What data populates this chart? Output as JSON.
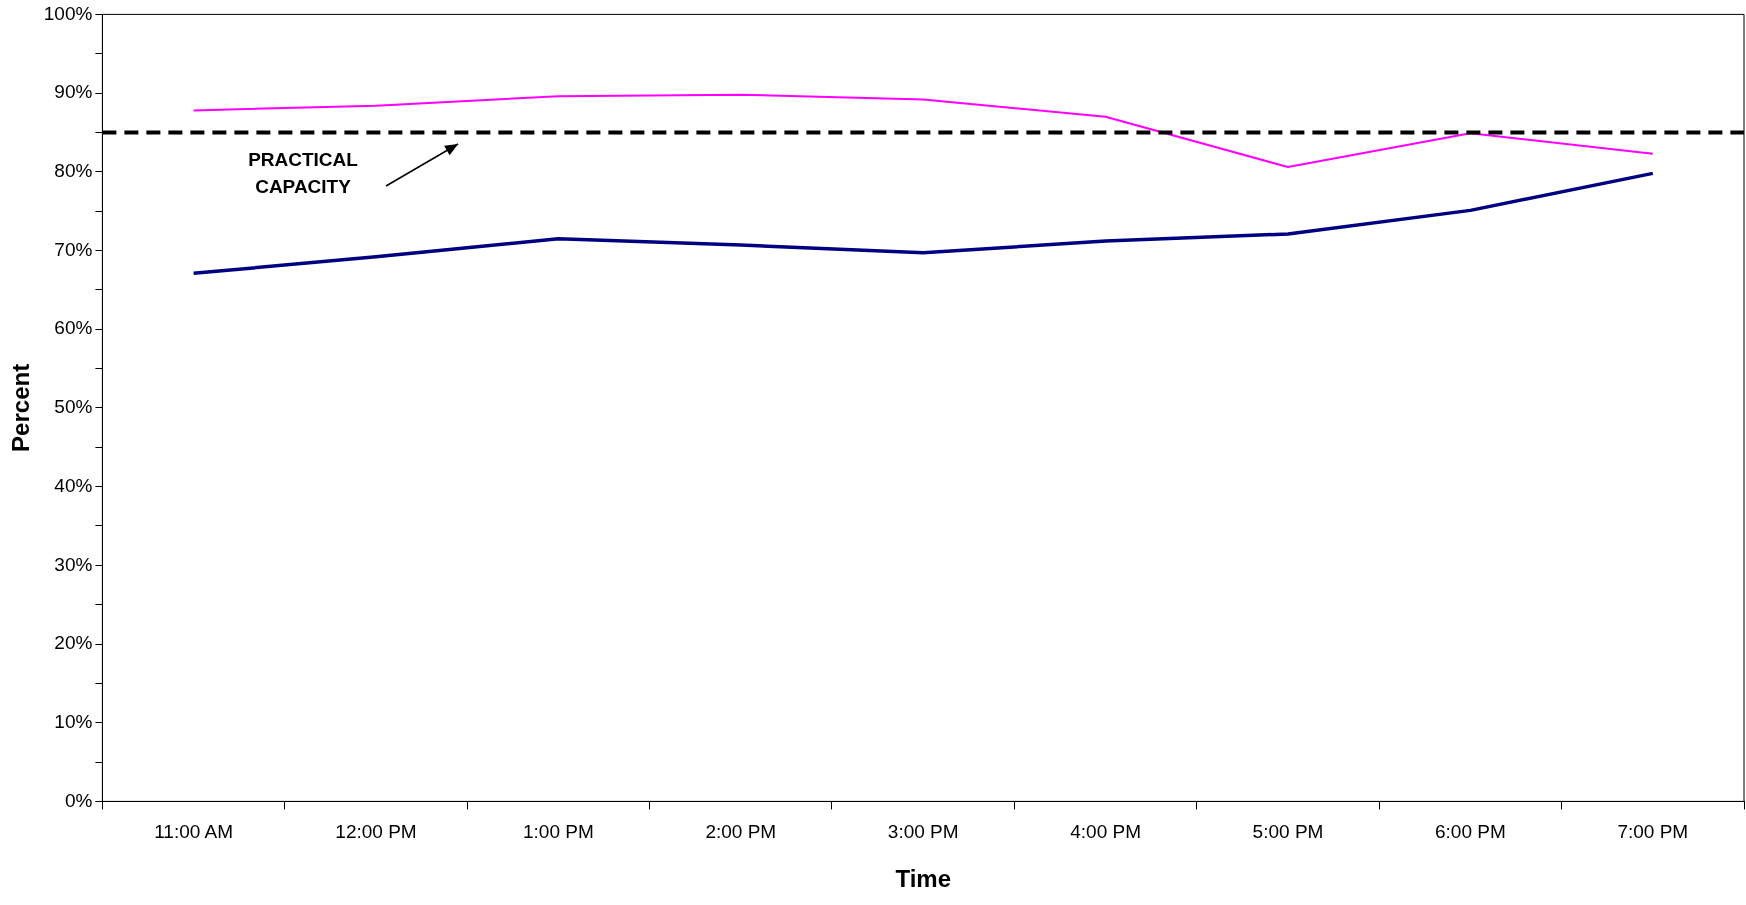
{
  "chart_data": {
    "type": "line",
    "xlabel": "Time",
    "ylabel": "Percent",
    "categories": [
      "11:00 AM",
      "12:00 PM",
      "1:00 PM",
      "2:00 PM",
      "3:00 PM",
      "4:00 PM",
      "5:00 PM",
      "6:00 PM",
      "7:00 PM"
    ],
    "series": [
      {
        "color": "#ff00ff",
        "values": [
          87.8,
          88.4,
          89.6,
          89.8,
          89.2,
          87.0,
          80.6,
          84.9,
          82.3
        ]
      },
      {
        "color": "#000080",
        "values": [
          67.1,
          69.2,
          71.5,
          70.7,
          69.7,
          71.2,
          72.1,
          75.1,
          79.8
        ]
      }
    ],
    "ylim": [
      0,
      100
    ],
    "yticks": [
      {
        "value": 0,
        "label": "0%"
      },
      {
        "value": 5,
        "label": null
      },
      {
        "value": 10,
        "label": "10%"
      },
      {
        "value": 15,
        "label": null
      },
      {
        "value": 20,
        "label": "20%"
      },
      {
        "value": 25,
        "label": null
      },
      {
        "value": 30,
        "label": "30%"
      },
      {
        "value": 35,
        "label": null
      },
      {
        "value": 40,
        "label": "40%"
      },
      {
        "value": 45,
        "label": null
      },
      {
        "value": 50,
        "label": "50%"
      },
      {
        "value": 55,
        "label": null
      },
      {
        "value": 60,
        "label": "60%"
      },
      {
        "value": 65,
        "label": null
      },
      {
        "value": 70,
        "label": "70%"
      },
      {
        "value": 75,
        "label": null
      },
      {
        "value": 80,
        "label": "80%"
      },
      {
        "value": 85,
        "label": null
      },
      {
        "value": 90,
        "label": "90%"
      },
      {
        "value": 95,
        "label": null
      },
      {
        "value": 100,
        "label": "100%"
      }
    ],
    "ref_lines": [
      {
        "axis": "y",
        "value": 85,
        "color": "#000000",
        "line_style": "dashed"
      }
    ],
    "annotations": [
      {
        "text": "PRACTICAL CAPACITY",
        "y": 85
      }
    ],
    "grid": false,
    "legend": false,
    "marker": "none",
    "line_style": "solid"
  }
}
